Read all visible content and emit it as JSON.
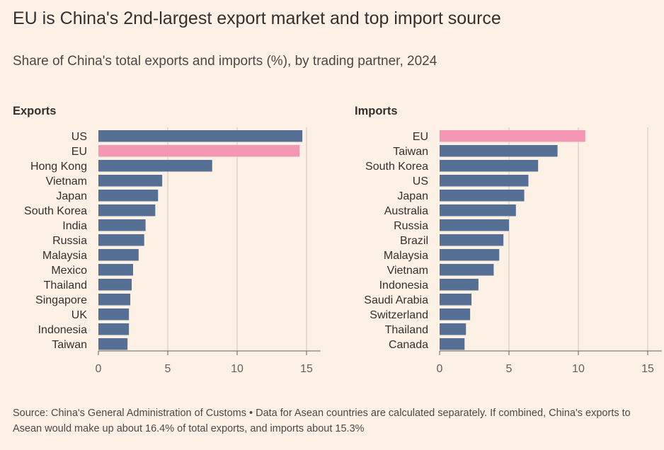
{
  "title": "EU is China's 2nd-largest export market and top import source",
  "subtitle": "Share of China's total exports and imports (%), by trading partner, 2024",
  "source": "Source: China's General Administration of Customs • Data for Asean countries are calculated separately. If combined, China's exports to Asean would make up about 16.4% of total exports, and imports about 15.3%",
  "colors": {
    "background": "#fdf1e6",
    "bar": "#557094",
    "highlight": "#f397b4",
    "grid": "#d4c7bb",
    "axis": "#66605c"
  },
  "chart_data": [
    {
      "type": "bar",
      "orientation": "horizontal",
      "title": "Exports",
      "categories": [
        "US",
        "EU",
        "Hong Kong",
        "Vietnam",
        "Japan",
        "South Korea",
        "India",
        "Russia",
        "Malaysia",
        "Mexico",
        "Thailand",
        "Singapore",
        "UK",
        "Indonesia",
        "Taiwan"
      ],
      "values": [
        14.7,
        14.5,
        8.2,
        4.6,
        4.3,
        4.1,
        3.4,
        3.3,
        2.9,
        2.5,
        2.4,
        2.3,
        2.2,
        2.2,
        2.1
      ],
      "highlight": "EU",
      "xlim": [
        0,
        16
      ],
      "xticks": [
        0,
        5,
        10,
        15
      ],
      "grid": true
    },
    {
      "type": "bar",
      "orientation": "horizontal",
      "title": "Imports",
      "categories": [
        "EU",
        "Taiwan",
        "South Korea",
        "US",
        "Japan",
        "Australia",
        "Russia",
        "Brazil",
        "Malaysia",
        "Vietnam",
        "Indonesia",
        "Saudi Arabia",
        "Switzerland",
        "Thailand",
        "Canada"
      ],
      "values": [
        10.5,
        8.5,
        7.1,
        6.4,
        6.1,
        5.5,
        5.0,
        4.6,
        4.3,
        3.9,
        2.8,
        2.3,
        2.2,
        1.9,
        1.8
      ],
      "highlight": "EU",
      "xlim": [
        0,
        16
      ],
      "xticks": [
        0,
        5,
        10,
        15
      ],
      "grid": true
    }
  ]
}
